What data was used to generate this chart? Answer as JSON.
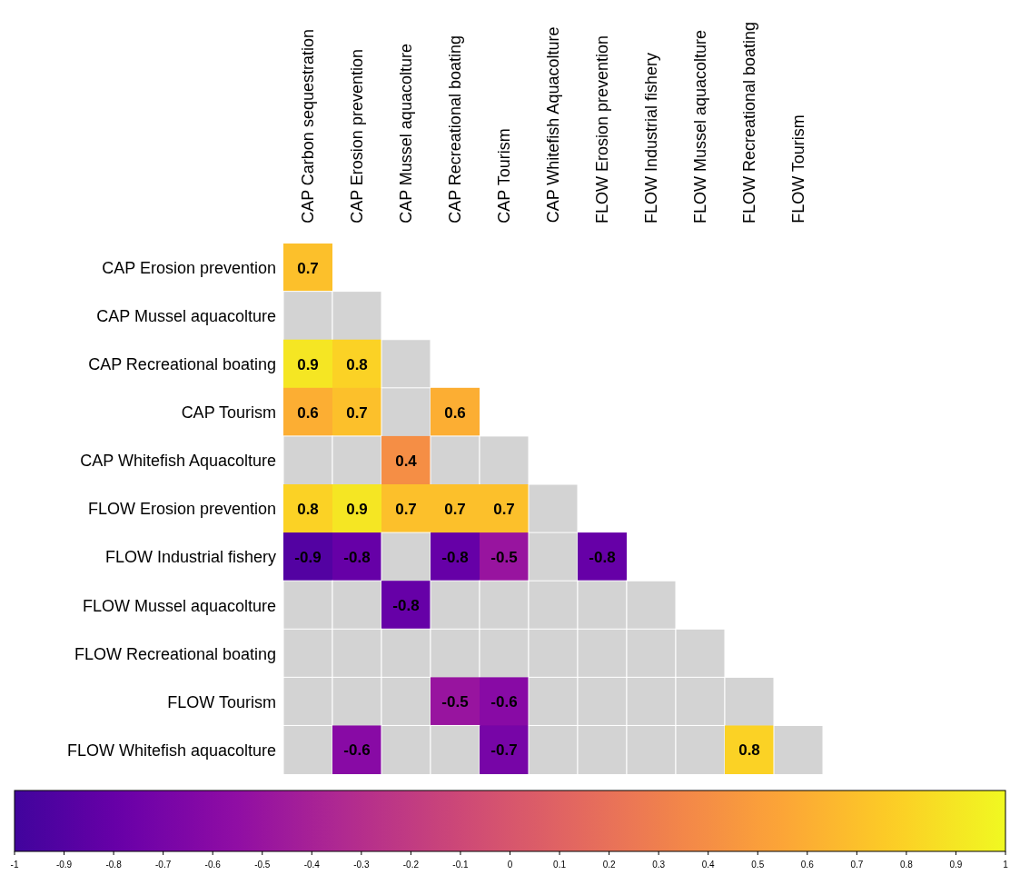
{
  "chart_data": {
    "type": "heatmap",
    "categories": [
      "CAP Carbon sequestration",
      "CAP Erosion prevention",
      "CAP Mussel aquacolture",
      "CAP Recreational boating",
      "CAP Tourism",
      "CAP Whitefish Aquacolture",
      "FLOW Erosion prevention",
      "FLOW Industrial fishery",
      "FLOW Mussel aquacolture",
      "FLOW Recreational boating",
      "FLOW Tourism"
    ],
    "y_categories": [
      "CAP Erosion prevention",
      "CAP Mussel aquacolture",
      "CAP Recreational boating",
      "CAP Tourism",
      "CAP Whitefish Aquacolture",
      "FLOW Erosion prevention",
      "FLOW Industrial fishery",
      "FLOW Mussel aquacolture",
      "FLOW Recreational boating",
      "FLOW Tourism",
      "FLOW Whitefish aquacolture"
    ],
    "cells": [
      [
        0.7,
        null,
        null,
        null,
        null,
        null,
        null,
        null,
        null,
        null,
        null
      ],
      [
        null,
        null,
        null,
        null,
        null,
        null,
        null,
        null,
        null,
        null,
        null
      ],
      [
        0.9,
        0.8,
        null,
        null,
        null,
        null,
        null,
        null,
        null,
        null,
        null
      ],
      [
        0.6,
        0.7,
        null,
        0.6,
        null,
        null,
        null,
        null,
        null,
        null,
        null
      ],
      [
        null,
        null,
        0.4,
        null,
        null,
        null,
        null,
        null,
        null,
        null,
        null
      ],
      [
        0.8,
        0.9,
        0.7,
        0.7,
        0.7,
        null,
        null,
        null,
        null,
        null,
        null
      ],
      [
        -0.9,
        -0.8,
        null,
        -0.8,
        -0.5,
        null,
        -0.8,
        null,
        null,
        null,
        null
      ],
      [
        null,
        null,
        -0.8,
        null,
        null,
        null,
        null,
        null,
        null,
        null,
        null
      ],
      [
        null,
        null,
        null,
        null,
        null,
        null,
        null,
        null,
        null,
        null,
        null
      ],
      [
        null,
        null,
        null,
        -0.5,
        -0.6,
        null,
        null,
        null,
        null,
        null,
        null
      ],
      [
        null,
        -0.6,
        null,
        null,
        -0.7,
        null,
        null,
        null,
        null,
        0.8,
        null
      ]
    ],
    "data_labels": true,
    "clim": [
      -1,
      1
    ],
    "cticks": [
      -1,
      -0.9,
      -0.8,
      -0.7,
      -0.6,
      -0.5,
      -0.4,
      -0.3,
      -0.2,
      -0.1,
      0,
      0.1,
      0.2,
      0.3,
      0.4,
      0.5,
      0.6,
      0.7,
      0.8,
      0.9,
      1
    ]
  }
}
